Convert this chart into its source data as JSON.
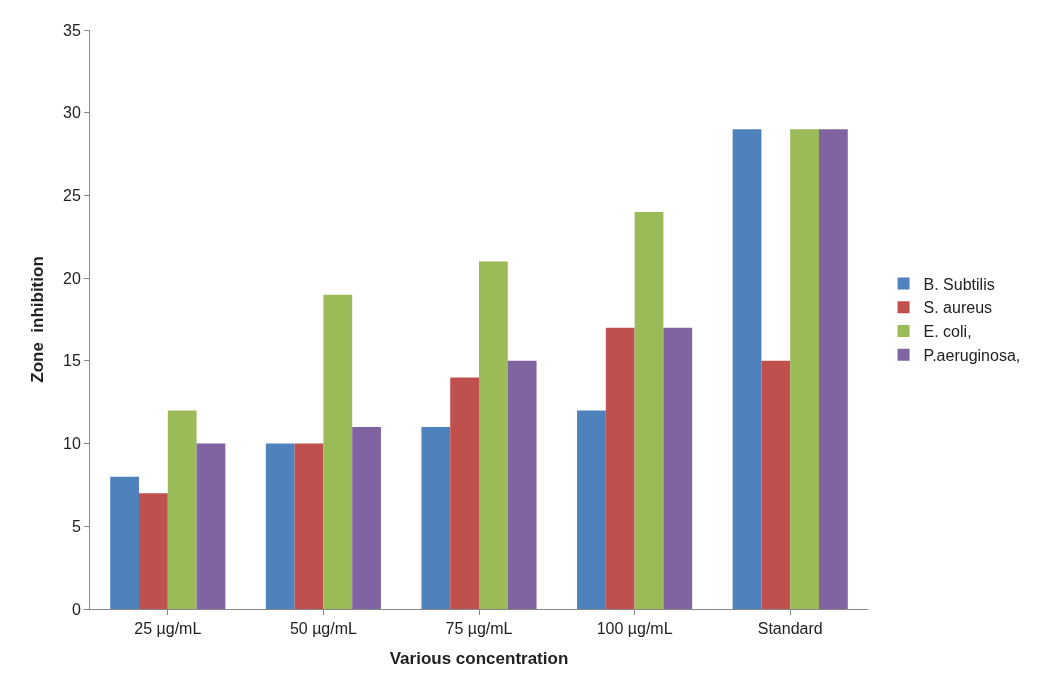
{
  "chart_data": {
    "type": "bar",
    "xlabel": "Various concentration",
    "ylabel": "Zone  inhibition",
    "categories": [
      "25 µg/mL",
      "50 µg/mL",
      "75 µg/mL",
      "100 µg/mL",
      "Standard"
    ],
    "series": [
      {
        "name": "B. Subtilis",
        "color": "#4f81bd",
        "values": [
          8,
          10,
          11,
          12,
          29
        ]
      },
      {
        "name": "S. aureus",
        "color": "#c0504d",
        "values": [
          7,
          10,
          14,
          17,
          15
        ]
      },
      {
        "name": "E. coli,",
        "color": "#9bbb59",
        "values": [
          12,
          19,
          21,
          24,
          29
        ]
      },
      {
        "name": "P.aeruginosa,",
        "color": "#8064a2",
        "values": [
          10,
          11,
          15,
          17,
          29
        ]
      }
    ],
    "ylim": [
      0,
      35
    ],
    "yticks": [
      0,
      5,
      10,
      15,
      20,
      25,
      30,
      35
    ],
    "legend": "right"
  }
}
